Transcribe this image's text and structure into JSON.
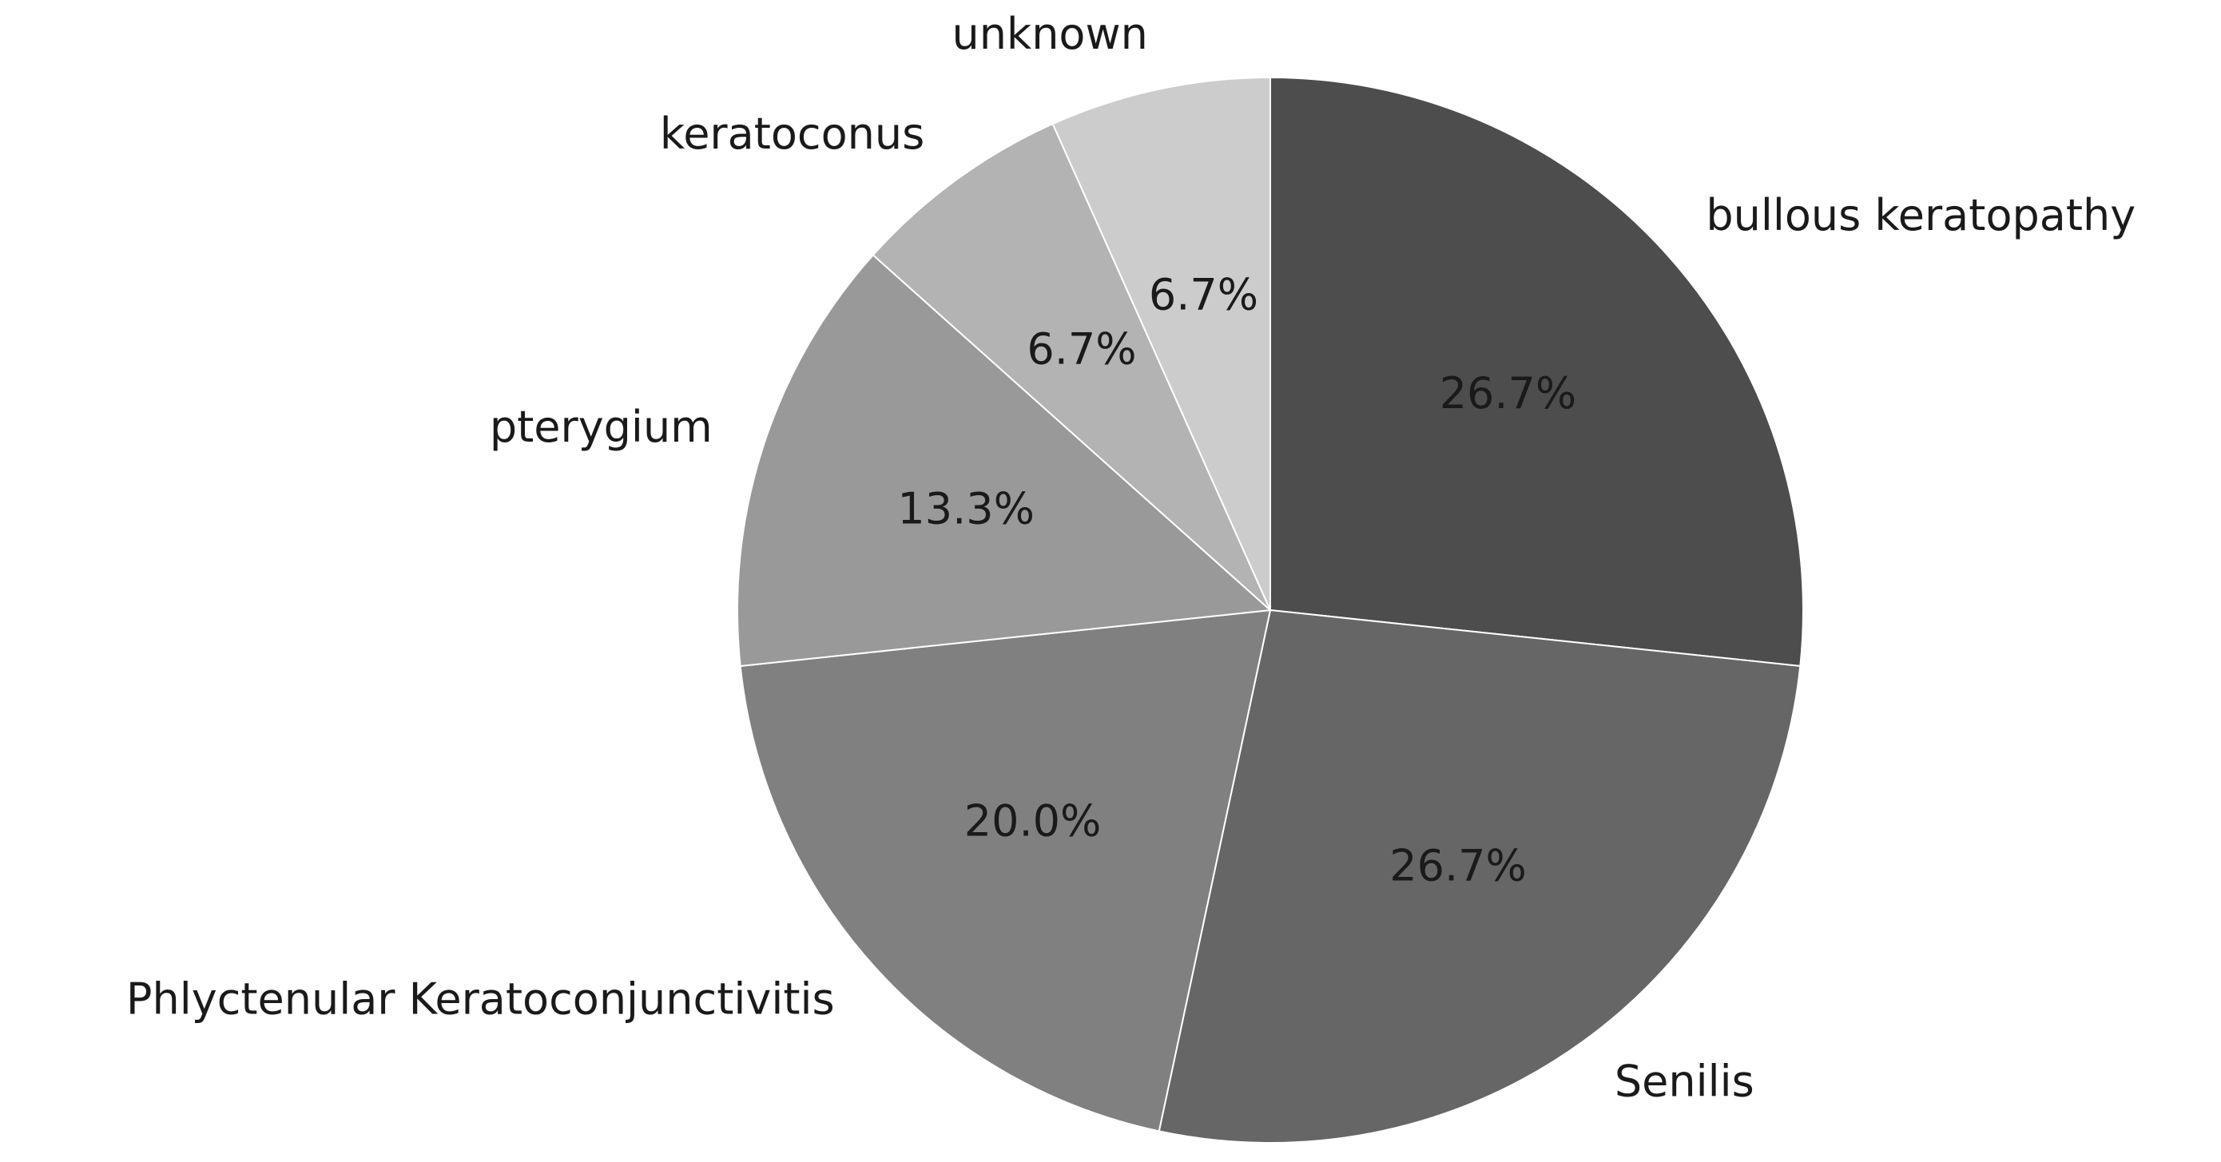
{
  "chart_data": {
    "type": "pie",
    "categories": [
      "bullous keratopathy",
      "Senilis",
      "Phlyctenular Keratoconjunctivitis",
      "pterygium",
      "keratoconus",
      "unknown"
    ],
    "values": [
      26.7,
      26.7,
      20.0,
      13.3,
      6.7,
      6.7
    ],
    "value_labels": [
      "26.7%",
      "26.7%",
      "20.0%",
      "13.3%",
      "6.7%",
      "6.7%"
    ],
    "colors": [
      "#4d4d4d",
      "#666666",
      "#808080",
      "#999999",
      "#b3b3b3",
      "#cccccc"
    ]
  }
}
